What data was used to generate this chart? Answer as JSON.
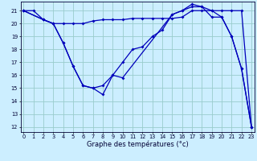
{
  "xlabel": "Graphe des températures (°c)",
  "background_color": "#cceeff",
  "grid_color": "#99cccc",
  "line_color": "#0000bb",
  "yticks": [
    12,
    13,
    14,
    15,
    16,
    17,
    18,
    19,
    20,
    21
  ],
  "xticks": [
    0,
    1,
    2,
    3,
    4,
    5,
    6,
    7,
    8,
    9,
    10,
    11,
    12,
    13,
    14,
    15,
    16,
    17,
    18,
    19,
    20,
    21,
    22,
    23
  ],
  "line1_x": [
    0,
    1,
    2,
    3,
    4,
    5,
    6,
    7,
    8,
    9,
    10,
    11,
    12,
    13,
    14,
    15,
    16,
    17,
    18,
    19,
    20,
    21,
    22,
    23
  ],
  "line1_y": [
    21,
    21,
    20.3,
    20,
    18.5,
    16.7,
    15.2,
    15,
    14.5,
    16,
    17,
    18,
    18.2,
    19,
    19.5,
    20.7,
    21,
    21.3,
    21.3,
    21,
    20.5,
    19,
    16.5,
    12
  ],
  "line2_x": [
    0,
    2,
    3,
    4,
    5,
    6,
    7,
    8,
    9,
    10,
    11,
    12,
    13,
    14,
    15,
    16,
    17,
    18,
    19,
    20,
    21,
    22,
    23
  ],
  "line2_y": [
    21,
    20.3,
    20,
    20,
    20,
    20,
    20.2,
    20.3,
    20.3,
    20.3,
    20.4,
    20.4,
    20.4,
    20.4,
    20.4,
    20.5,
    21,
    21,
    21,
    21,
    21,
    21,
    12
  ],
  "line3_x": [
    0,
    2,
    3,
    4,
    5,
    6,
    7,
    8,
    9,
    10,
    15,
    16,
    17,
    18,
    19,
    20,
    21,
    22,
    23
  ],
  "line3_y": [
    21,
    20.3,
    20,
    18.5,
    16.7,
    15.2,
    15,
    15.2,
    16,
    15.8,
    20.7,
    21,
    21.5,
    21.3,
    20.5,
    20.5,
    19,
    16.5,
    12
  ]
}
